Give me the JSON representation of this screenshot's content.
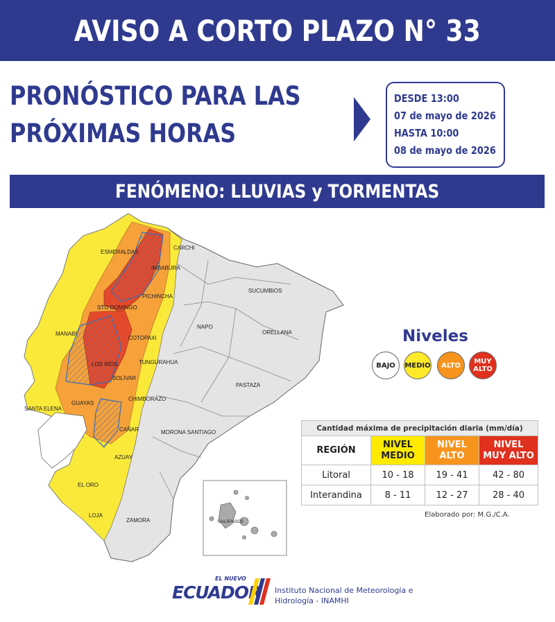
{
  "header": {
    "title": "AVISO A CORTO PLAZO N° 33"
  },
  "forecast": {
    "line1": "PRONÓSTICO PARA LAS",
    "line2": "PRÓXIMAS HORAS"
  },
  "validity": {
    "from_line": "DESDE  13:00",
    "from_date": "07 de mayo de 2026",
    "to_line": "HASTA 10:00",
    "to_date": "08 de mayo de 2026"
  },
  "phenomenon": "FENÓMENO:  LLUVIAS y TORMENTAS",
  "map": {
    "provinces": [
      "ESMERALDAS",
      "CARCHI",
      "IMBABURA",
      "PICHINCHA",
      "STO DOMINGO",
      "SUCUMBIOS",
      "NAPO",
      "ORELLANA",
      "MANABÍ",
      "COTOPAXI",
      "LOS RÍOS",
      "TUNGURAHUA",
      "BOLÍVAR",
      "PASTAZA",
      "SANTA ELENA",
      "GUAYAS",
      "CHIMBORAZO",
      "CAÑAR",
      "MORONA SANTIAGO",
      "AZUAY",
      "EL ORO",
      "LOJA",
      "ZAMORA",
      "GALÁPAGOS"
    ],
    "colors": {
      "land": "#e4e4e4",
      "medio": "#fbe93a",
      "alto": "#f6a13a",
      "muy_alto": "#e34a2c",
      "hatch": "#3b6fb6"
    }
  },
  "levels": {
    "title": "Niveles",
    "bajo": "BAJO",
    "medio": "MEDIO",
    "alto": "ALTO",
    "muy_alto_1": "MUY",
    "muy_alto_2": "ALTO"
  },
  "table": {
    "caption": "Cantidad máxima de precipitación diaria (mm/día)",
    "region_header": "REGIÓN",
    "medio_1": "NIVEL",
    "medio_2": "MEDIO",
    "alto_1": "NIVEL",
    "alto_2": "ALTO",
    "muy_1": "NIVEL",
    "muy_2": "MUY ALTO",
    "rows": [
      {
        "region": "Litoral",
        "medio": "10 - 18",
        "alto": "19 - 41",
        "muy_alto": "42 - 80"
      },
      {
        "region": "Interandina",
        "medio": "8 - 11",
        "alto": "12 - 27",
        "muy_alto": "28 - 40"
      }
    ]
  },
  "credit": "Elaborado por: M.G./C.A.",
  "footer": {
    "logo_small": "EL NUEVO",
    "logo_main": "ECUADOR",
    "institute_1": "Instituto Nacional de Meteorología e",
    "institute_2": "Hidrología - INAMHI"
  }
}
